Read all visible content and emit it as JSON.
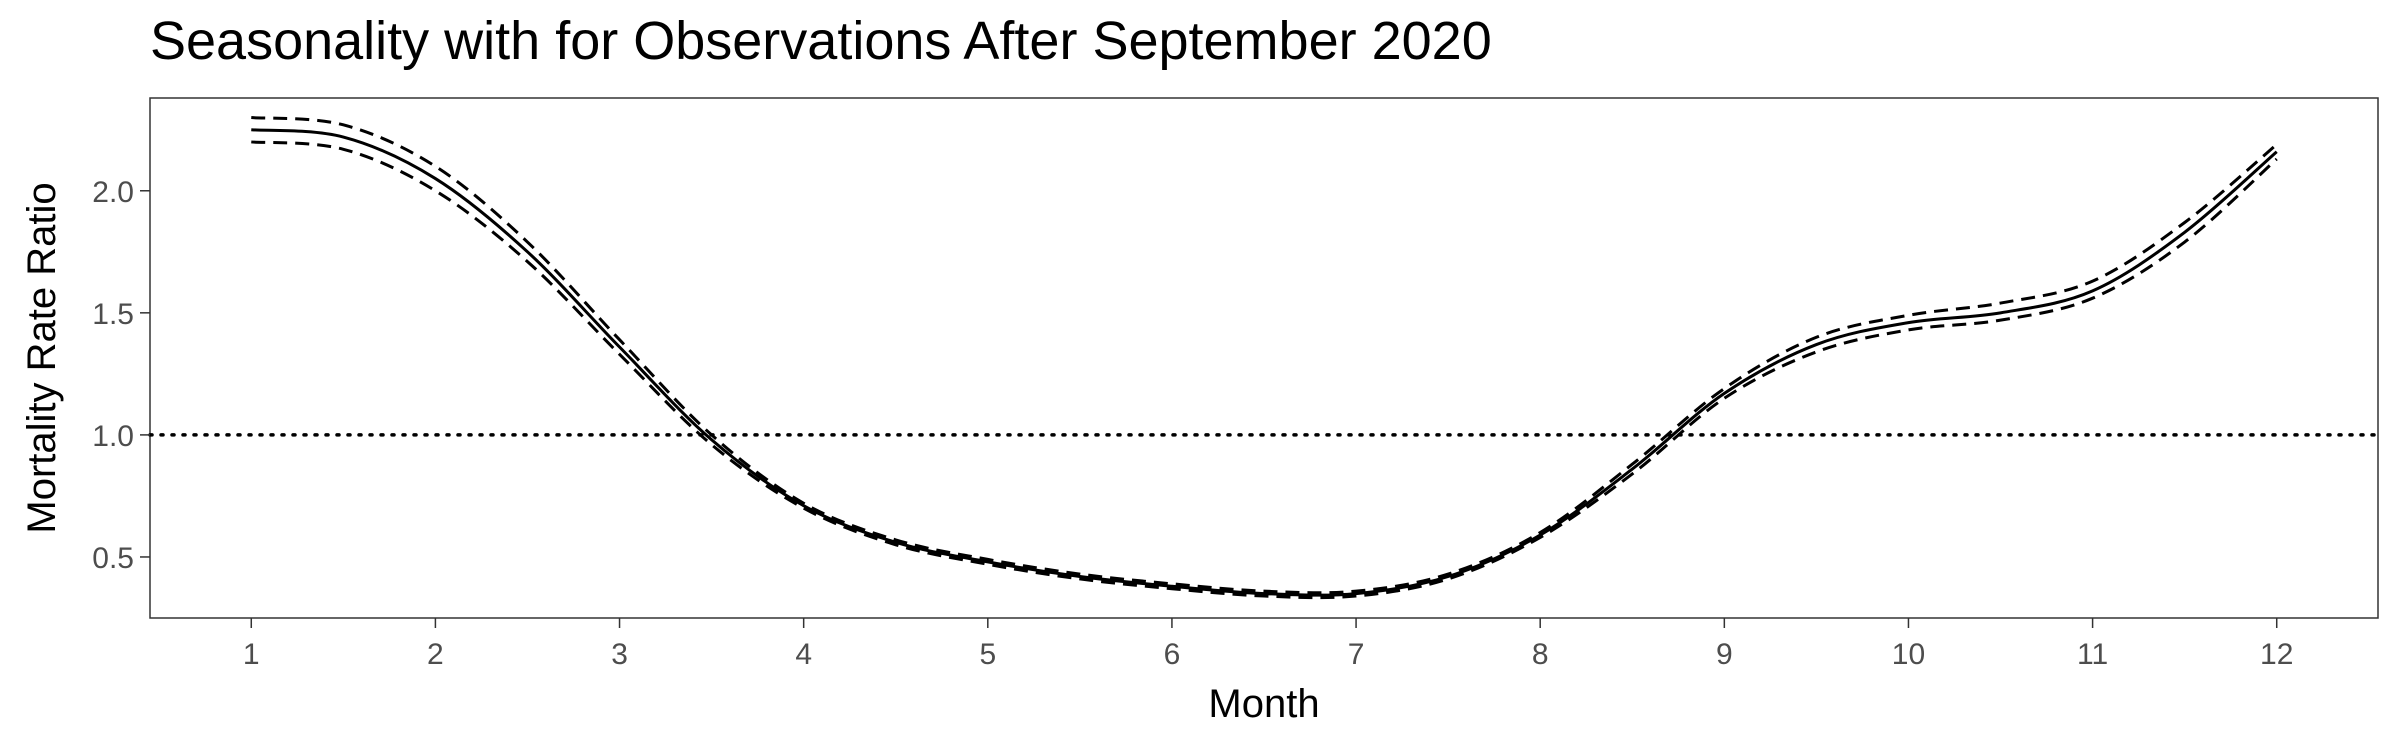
{
  "chart_data": {
    "type": "line",
    "title": "Seasonality with for Observations After September 2020",
    "xlabel": "Month",
    "ylabel": "Mortality Rate Ratio",
    "xlim": [
      0.45,
      12.55
    ],
    "ylim": [
      0.25,
      2.38
    ],
    "xticks": [
      1,
      2,
      3,
      4,
      5,
      6,
      7,
      8,
      9,
      10,
      11,
      12
    ],
    "yticks": [
      0.5,
      1.0,
      1.5,
      2.0
    ],
    "ytick_labels": [
      "0.5",
      "1.0",
      "1.5",
      "2.0"
    ],
    "grid": false,
    "legend": "none",
    "reference_line": {
      "y": 1.0,
      "style": "dotted"
    },
    "x": [
      1,
      1.5,
      2,
      2.5,
      3,
      3.5,
      4,
      4.5,
      5,
      5.5,
      6,
      6.5,
      7,
      7.5,
      8,
      8.5,
      9,
      9.5,
      10,
      10.5,
      11,
      11.5,
      12
    ],
    "series": [
      {
        "style": "solid",
        "values": [
          2.25,
          2.22,
          2.05,
          1.75,
          1.36,
          0.98,
          0.71,
          0.56,
          0.48,
          0.42,
          0.38,
          0.35,
          0.35,
          0.42,
          0.59,
          0.86,
          1.17,
          1.37,
          1.46,
          1.5,
          1.59,
          1.83,
          2.16
        ]
      },
      {
        "style": "dashed",
        "values": [
          2.3,
          2.27,
          2.1,
          1.79,
          1.39,
          1.0,
          0.72,
          0.57,
          0.49,
          0.43,
          0.39,
          0.36,
          0.36,
          0.43,
          0.6,
          0.88,
          1.19,
          1.4,
          1.49,
          1.54,
          1.63,
          1.87,
          2.19
        ]
      },
      {
        "style": "dashed",
        "values": [
          2.2,
          2.17,
          2.0,
          1.71,
          1.33,
          0.96,
          0.7,
          0.55,
          0.47,
          0.41,
          0.37,
          0.34,
          0.34,
          0.41,
          0.58,
          0.84,
          1.15,
          1.34,
          1.43,
          1.47,
          1.56,
          1.79,
          2.13
        ]
      }
    ]
  }
}
